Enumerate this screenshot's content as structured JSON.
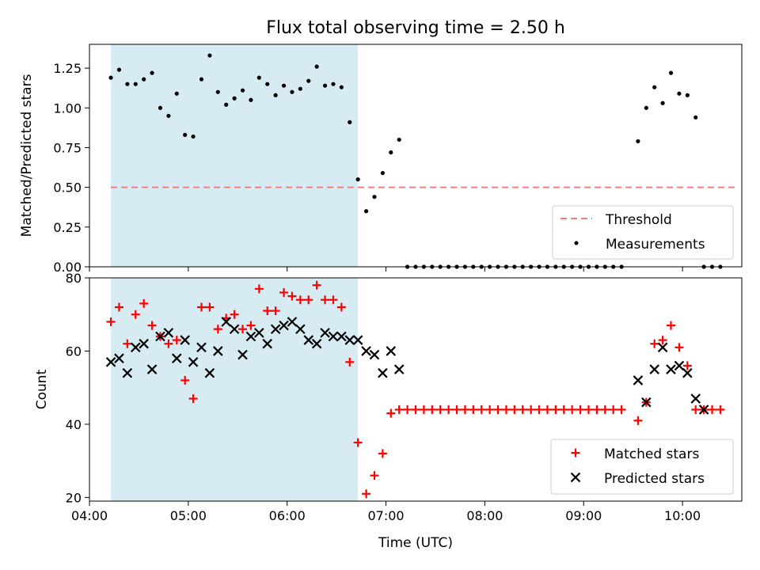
{
  "chart_data": [
    {
      "type": "scatter",
      "title": "Flux total observing time = 2.50 h",
      "ylabel": "Matched/Predicted stars",
      "xlabel": "",
      "ylim": [
        0,
        1.4
      ],
      "xlim": [
        "04:00",
        "10:36"
      ],
      "grid": false,
      "legend_position": "bottom-right",
      "x_ticks": [
        "04:00",
        "05:00",
        "06:00",
        "07:00",
        "08:00",
        "09:00",
        "10:00"
      ],
      "x_ticklabels_visible": false,
      "y_ticks": [
        "0.00",
        "0.25",
        "0.50",
        "0.75",
        "1.00",
        "1.25"
      ],
      "shaded_interval": {
        "start": "04:13",
        "end": "06:43",
        "color": "#add8e6"
      },
      "threshold": {
        "name": "Threshold",
        "value": 0.5,
        "start": "04:13",
        "end": "10:32",
        "color": "#f08080"
      },
      "series": [
        {
          "name": "Measurements",
          "marker": "dot",
          "color": "#000000",
          "points": [
            [
              "04:13",
              1.19
            ],
            [
              "04:18",
              1.24
            ],
            [
              "04:23",
              1.15
            ],
            [
              "04:28",
              1.15
            ],
            [
              "04:33",
              1.18
            ],
            [
              "04:38",
              1.22
            ],
            [
              "04:43",
              1.0
            ],
            [
              "04:48",
              0.95
            ],
            [
              "04:53",
              1.09
            ],
            [
              "04:58",
              0.83
            ],
            [
              "05:03",
              0.82
            ],
            [
              "05:08",
              1.18
            ],
            [
              "05:13",
              1.33
            ],
            [
              "05:18",
              1.1
            ],
            [
              "05:23",
              1.02
            ],
            [
              "05:28",
              1.06
            ],
            [
              "05:33",
              1.11
            ],
            [
              "05:38",
              1.05
            ],
            [
              "05:43",
              1.19
            ],
            [
              "05:48",
              1.15
            ],
            [
              "05:53",
              1.08
            ],
            [
              "05:58",
              1.14
            ],
            [
              "06:03",
              1.1
            ],
            [
              "06:08",
              1.12
            ],
            [
              "06:13",
              1.17
            ],
            [
              "06:18",
              1.26
            ],
            [
              "06:23",
              1.14
            ],
            [
              "06:28",
              1.15
            ],
            [
              "06:33",
              1.13
            ],
            [
              "06:38",
              0.91
            ],
            [
              "06:43",
              0.55
            ],
            [
              "06:48",
              0.35
            ],
            [
              "06:53",
              0.44
            ],
            [
              "06:58",
              0.59
            ],
            [
              "07:03",
              0.72
            ],
            [
              "07:08",
              0.8
            ],
            [
              "07:13",
              0.0
            ],
            [
              "07:18",
              0.0
            ],
            [
              "07:23",
              0.0
            ],
            [
              "07:28",
              0.0
            ],
            [
              "07:33",
              0.0
            ],
            [
              "07:38",
              0.0
            ],
            [
              "07:43",
              0.0
            ],
            [
              "07:48",
              0.0
            ],
            [
              "07:53",
              0.0
            ],
            [
              "07:58",
              0.0
            ],
            [
              "08:03",
              0.0
            ],
            [
              "08:08",
              0.0
            ],
            [
              "08:13",
              0.0
            ],
            [
              "08:18",
              0.0
            ],
            [
              "08:23",
              0.0
            ],
            [
              "08:28",
              0.0
            ],
            [
              "08:33",
              0.0
            ],
            [
              "08:38",
              0.0
            ],
            [
              "08:43",
              0.0
            ],
            [
              "08:48",
              0.0
            ],
            [
              "08:53",
              0.0
            ],
            [
              "08:58",
              0.0
            ],
            [
              "09:03",
              0.0
            ],
            [
              "09:08",
              0.0
            ],
            [
              "09:13",
              0.0
            ],
            [
              "09:18",
              0.0
            ],
            [
              "09:23",
              0.0
            ],
            [
              "09:33",
              0.79
            ],
            [
              "09:38",
              1.0
            ],
            [
              "09:43",
              1.13
            ],
            [
              "09:48",
              1.03
            ],
            [
              "09:53",
              1.22
            ],
            [
              "09:58",
              1.09
            ],
            [
              "10:03",
              1.08
            ],
            [
              "10:08",
              0.94
            ],
            [
              "10:13",
              0.0
            ],
            [
              "10:18",
              0.0
            ],
            [
              "10:23",
              0.0
            ]
          ]
        }
      ]
    },
    {
      "type": "scatter",
      "title": "",
      "xlabel": "Time (UTC)",
      "ylabel": "Count",
      "ylim": [
        19,
        80
      ],
      "xlim": [
        "04:00",
        "10:36"
      ],
      "grid": false,
      "legend_position": "bottom-right",
      "x_ticks": [
        "04:00",
        "05:00",
        "06:00",
        "07:00",
        "08:00",
        "09:00",
        "10:00"
      ],
      "y_ticks": [
        "20",
        "40",
        "60",
        "80"
      ],
      "shaded_interval": {
        "start": "04:13",
        "end": "06:43",
        "color": "#add8e6"
      },
      "series": [
        {
          "name": "Matched stars",
          "marker": "plus",
          "color": "#ff0000",
          "points": [
            [
              "04:13",
              68
            ],
            [
              "04:18",
              72
            ],
            [
              "04:23",
              62
            ],
            [
              "04:28",
              70
            ],
            [
              "04:33",
              73
            ],
            [
              "04:38",
              67
            ],
            [
              "04:43",
              64
            ],
            [
              "04:48",
              62
            ],
            [
              "04:53",
              63
            ],
            [
              "04:58",
              52
            ],
            [
              "05:03",
              47
            ],
            [
              "05:08",
              72
            ],
            [
              "05:13",
              72
            ],
            [
              "05:18",
              66
            ],
            [
              "05:23",
              69
            ],
            [
              "05:28",
              70
            ],
            [
              "05:33",
              66
            ],
            [
              "05:38",
              67
            ],
            [
              "05:43",
              77
            ],
            [
              "05:48",
              71
            ],
            [
              "05:53",
              71
            ],
            [
              "05:58",
              76
            ],
            [
              "06:03",
              75
            ],
            [
              "06:08",
              74
            ],
            [
              "06:13",
              74
            ],
            [
              "06:18",
              78
            ],
            [
              "06:23",
              74
            ],
            [
              "06:28",
              74
            ],
            [
              "06:33",
              72
            ],
            [
              "06:38",
              57
            ],
            [
              "06:43",
              35
            ],
            [
              "06:48",
              21
            ],
            [
              "06:53",
              26
            ],
            [
              "06:58",
              32
            ],
            [
              "07:03",
              43
            ],
            [
              "07:08",
              44
            ],
            [
              "07:13",
              44
            ],
            [
              "07:18",
              44
            ],
            [
              "07:23",
              44
            ],
            [
              "07:28",
              44
            ],
            [
              "07:33",
              44
            ],
            [
              "07:38",
              44
            ],
            [
              "07:43",
              44
            ],
            [
              "07:48",
              44
            ],
            [
              "07:53",
              44
            ],
            [
              "07:58",
              44
            ],
            [
              "08:03",
              44
            ],
            [
              "08:08",
              44
            ],
            [
              "08:13",
              44
            ],
            [
              "08:18",
              44
            ],
            [
              "08:23",
              44
            ],
            [
              "08:28",
              44
            ],
            [
              "08:33",
              44
            ],
            [
              "08:38",
              44
            ],
            [
              "08:43",
              44
            ],
            [
              "08:48",
              44
            ],
            [
              "08:53",
              44
            ],
            [
              "08:58",
              44
            ],
            [
              "09:03",
              44
            ],
            [
              "09:08",
              44
            ],
            [
              "09:13",
              44
            ],
            [
              "09:18",
              44
            ],
            [
              "09:23",
              44
            ],
            [
              "09:33",
              41
            ],
            [
              "09:38",
              46
            ],
            [
              "09:43",
              62
            ],
            [
              "09:48",
              63
            ],
            [
              "09:53",
              67
            ],
            [
              "09:58",
              61
            ],
            [
              "10:03",
              56
            ],
            [
              "10:08",
              44
            ],
            [
              "10:13",
              44
            ],
            [
              "10:18",
              44
            ],
            [
              "10:23",
              44
            ]
          ]
        },
        {
          "name": "Predicted stars",
          "marker": "x",
          "color": "#000000",
          "points": [
            [
              "04:13",
              57
            ],
            [
              "04:18",
              58
            ],
            [
              "04:23",
              54
            ],
            [
              "04:28",
              61
            ],
            [
              "04:33",
              62
            ],
            [
              "04:38",
              55
            ],
            [
              "04:43",
              64
            ],
            [
              "04:48",
              65
            ],
            [
              "04:53",
              58
            ],
            [
              "04:58",
              63
            ],
            [
              "05:03",
              57
            ],
            [
              "05:08",
              61
            ],
            [
              "05:13",
              54
            ],
            [
              "05:18",
              60
            ],
            [
              "05:23",
              68
            ],
            [
              "05:28",
              66
            ],
            [
              "05:33",
              59
            ],
            [
              "05:38",
              64
            ],
            [
              "05:43",
              65
            ],
            [
              "05:48",
              62
            ],
            [
              "05:53",
              66
            ],
            [
              "05:58",
              67
            ],
            [
              "06:03",
              68
            ],
            [
              "06:08",
              66
            ],
            [
              "06:13",
              63
            ],
            [
              "06:18",
              62
            ],
            [
              "06:23",
              65
            ],
            [
              "06:28",
              64
            ],
            [
              "06:33",
              64
            ],
            [
              "06:38",
              63
            ],
            [
              "06:43",
              63
            ],
            [
              "06:48",
              60
            ],
            [
              "06:53",
              59
            ],
            [
              "06:58",
              54
            ],
            [
              "07:03",
              60
            ],
            [
              "07:08",
              55
            ],
            [
              "09:33",
              52
            ],
            [
              "09:38",
              46
            ],
            [
              "09:43",
              55
            ],
            [
              "09:48",
              61
            ],
            [
              "09:53",
              55
            ],
            [
              "09:58",
              56
            ],
            [
              "10:03",
              54
            ],
            [
              "10:08",
              47
            ],
            [
              "10:13",
              44
            ]
          ]
        }
      ]
    }
  ]
}
